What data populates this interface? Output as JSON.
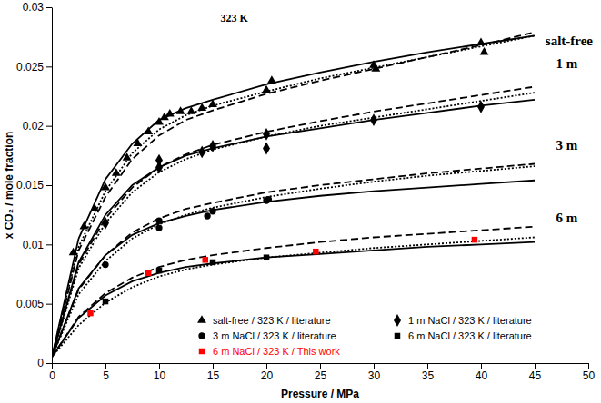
{
  "chart_data": {
    "type": "scatter",
    "title": "323 K",
    "x_label": "Pressure / MPa",
    "y_label": "x CO₂ / mole fraction",
    "xlim": [
      0,
      50
    ],
    "ylim": [
      0,
      0.03
    ],
    "xticks": [
      0,
      5,
      10,
      15,
      20,
      25,
      30,
      35,
      40,
      45,
      50
    ],
    "yticks": [
      0,
      0.005,
      0.01,
      0.015,
      0.02,
      0.025,
      0.03
    ],
    "grid": false,
    "legend": "lower right",
    "series": [
      {
        "name": "salt-free / 323 K / literature",
        "type": "scatter",
        "marker": "triangle",
        "color": "#000000",
        "x": [
          2,
          3,
          4,
          5,
          6,
          7,
          8,
          9,
          10,
          10.5,
          11,
          12,
          13,
          14,
          15,
          20,
          20.5,
          30,
          30.2,
          40,
          40.3
        ],
        "values": [
          0.0093,
          0.0115,
          0.013,
          0.0148,
          0.016,
          0.0173,
          0.0185,
          0.0195,
          0.0203,
          0.0207,
          0.021,
          0.0212,
          0.0212,
          0.0215,
          0.0218,
          0.023,
          0.0238,
          0.0251,
          0.0248,
          0.027,
          0.0262
        ]
      },
      {
        "name": "1 m NaCl / 323 K / literature",
        "type": "scatter",
        "marker": "diamond",
        "color": "#000000",
        "x": [
          5,
          10,
          10,
          14,
          15,
          20,
          20,
          30,
          40
        ],
        "values": [
          0.0118,
          0.0171,
          0.0165,
          0.0178,
          0.0183,
          0.0193,
          0.0181,
          0.0205,
          0.0216
        ]
      },
      {
        "name": "3 m NaCl / 323 K / literature",
        "type": "scatter",
        "marker": "circle",
        "color": "#000000",
        "x": [
          5,
          10,
          10,
          14.5,
          15,
          20,
          20.2
        ],
        "values": [
          0.0083,
          0.0114,
          0.012,
          0.0124,
          0.0128,
          0.0137,
          0.0138
        ]
      },
      {
        "name": "6 m NaCl / 323 K / literature",
        "type": "scatter",
        "marker": "square",
        "color": "#000000",
        "x": [
          5,
          10,
          15,
          20
        ],
        "values": [
          0.0052,
          0.0078,
          0.0085,
          0.0089
        ]
      },
      {
        "name": "6 m NaCl / 323 K / This work",
        "type": "scatter",
        "marker": "square",
        "color": "#ff0000",
        "x": [
          3.6,
          9,
          14.3,
          24.6,
          39.4
        ],
        "values": [
          0.0042,
          0.0076,
          0.0087,
          0.0094,
          0.0104
        ]
      },
      {
        "type": "line",
        "line_style": "solid",
        "color": "#000000",
        "x": [
          0,
          2.5,
          5,
          7.5,
          10,
          12.5,
          15,
          20,
          25,
          30,
          35,
          40,
          45
        ],
        "values": [
          0.0005,
          0.0105,
          0.0155,
          0.0185,
          0.0205,
          0.0215,
          0.0222,
          0.0235,
          0.0245,
          0.0254,
          0.0262,
          0.0269,
          0.0276
        ]
      },
      {
        "type": "line",
        "line_style": "dashed",
        "color": "#000000",
        "x": [
          0,
          2.5,
          5,
          7.5,
          10,
          12.5,
          15,
          20,
          25,
          30,
          35,
          40,
          45
        ],
        "values": [
          0.0005,
          0.0095,
          0.014,
          0.0172,
          0.0192,
          0.0205,
          0.0213,
          0.0227,
          0.0238,
          0.0248,
          0.0258,
          0.0268,
          0.0279
        ]
      },
      {
        "type": "line",
        "line_style": "dotted",
        "color": "#000000",
        "x": [
          0,
          2.5,
          5,
          7.5,
          10,
          12.5,
          15,
          20,
          25,
          30,
          35,
          40,
          45
        ],
        "values": [
          0.0005,
          0.0098,
          0.0145,
          0.0177,
          0.0197,
          0.0209,
          0.0217,
          0.0229,
          0.024,
          0.0249,
          0.0258,
          0.0267,
          0.0276
        ]
      },
      {
        "type": "line",
        "line_style": "solid",
        "color": "#000000",
        "x": [
          0,
          2.5,
          5,
          7.5,
          10,
          12.5,
          15,
          20,
          25,
          30,
          35,
          40,
          45
        ],
        "values": [
          0.0005,
          0.0085,
          0.0125,
          0.015,
          0.0165,
          0.0175,
          0.0181,
          0.0191,
          0.0198,
          0.0205,
          0.0211,
          0.0217,
          0.0222
        ]
      },
      {
        "type": "line",
        "line_style": "dashed",
        "color": "#000000",
        "x": [
          0,
          2.5,
          5,
          7.5,
          10,
          12.5,
          15,
          20,
          25,
          30,
          35,
          40,
          45
        ],
        "values": [
          0.0005,
          0.0083,
          0.0122,
          0.0148,
          0.0165,
          0.0176,
          0.0184,
          0.0195,
          0.0204,
          0.0212,
          0.0219,
          0.0226,
          0.0233
        ]
      },
      {
        "type": "line",
        "line_style": "dotted",
        "color": "#000000",
        "x": [
          0,
          2.5,
          5,
          7.5,
          10,
          12.5,
          15,
          20,
          25,
          30,
          35,
          40,
          45
        ],
        "values": [
          0.0005,
          0.008,
          0.0118,
          0.0144,
          0.0161,
          0.0172,
          0.018,
          0.0191,
          0.02,
          0.0207,
          0.0214,
          0.0221,
          0.0228
        ]
      },
      {
        "type": "line",
        "line_style": "solid",
        "color": "#000000",
        "x": [
          0,
          2.5,
          5,
          7.5,
          10,
          12.5,
          15,
          20,
          25,
          30,
          35,
          40,
          45
        ],
        "values": [
          0.0005,
          0.0063,
          0.0091,
          0.0108,
          0.0118,
          0.0124,
          0.0129,
          0.0136,
          0.0141,
          0.0145,
          0.0148,
          0.0151,
          0.0154
        ]
      },
      {
        "type": "line",
        "line_style": "dashed",
        "color": "#000000",
        "x": [
          0,
          2.5,
          5,
          7.5,
          10,
          12.5,
          15,
          20,
          25,
          30,
          35,
          40,
          45
        ],
        "values": [
          0.0005,
          0.0062,
          0.0091,
          0.011,
          0.0122,
          0.013,
          0.0135,
          0.0144,
          0.015,
          0.0155,
          0.016,
          0.0164,
          0.0168
        ]
      },
      {
        "type": "line",
        "line_style": "dotted",
        "color": "#000000",
        "x": [
          0,
          2.5,
          5,
          7.5,
          10,
          12.5,
          15,
          20,
          25,
          30,
          35,
          40,
          45
        ],
        "values": [
          0.0005,
          0.0058,
          0.0086,
          0.0105,
          0.0117,
          0.0125,
          0.0131,
          0.014,
          0.0147,
          0.0153,
          0.0158,
          0.0162,
          0.0166
        ]
      },
      {
        "type": "line",
        "line_style": "solid",
        "color": "#000000",
        "x": [
          0,
          2.5,
          5,
          7.5,
          10,
          12.5,
          15,
          20,
          25,
          30,
          35,
          40,
          45
        ],
        "values": [
          0.0005,
          0.0038,
          0.0057,
          0.0069,
          0.0076,
          0.0081,
          0.0084,
          0.0089,
          0.0092,
          0.0095,
          0.0098,
          0.01,
          0.0102
        ]
      },
      {
        "type": "line",
        "line_style": "dashed",
        "color": "#000000",
        "x": [
          0,
          2.5,
          5,
          7.5,
          10,
          12.5,
          15,
          20,
          25,
          30,
          35,
          40,
          45
        ],
        "values": [
          0.0005,
          0.0039,
          0.0059,
          0.0072,
          0.0081,
          0.0087,
          0.0091,
          0.0097,
          0.0102,
          0.0106,
          0.0109,
          0.0112,
          0.0115
        ]
      },
      {
        "type": "line",
        "line_style": "dotted",
        "color": "#000000",
        "x": [
          0,
          2.5,
          5,
          7.5,
          10,
          12.5,
          15,
          20,
          25,
          30,
          35,
          40,
          45
        ],
        "values": [
          0.0005,
          0.0032,
          0.0051,
          0.0064,
          0.0073,
          0.0079,
          0.0083,
          0.0089,
          0.0093,
          0.0097,
          0.01,
          0.0103,
          0.0106
        ]
      }
    ],
    "annotations": [
      {
        "text": "salt-free",
        "x": 46,
        "y": 0.0268
      },
      {
        "text": "1 m",
        "x": 47,
        "y": 0.0249
      },
      {
        "text": "3 m",
        "x": 47,
        "y": 0.018
      },
      {
        "text": "6 m",
        "x": 47,
        "y": 0.0119
      }
    ]
  }
}
